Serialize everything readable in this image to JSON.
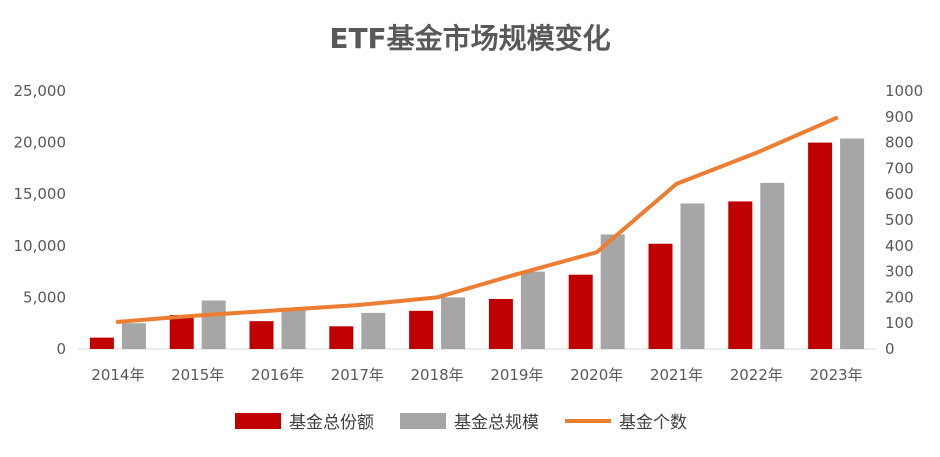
{
  "chart_data": {
    "type": "bar",
    "title": "ETF基金市场规模变化",
    "categories": [
      "2014年",
      "2015年",
      "2016年",
      "2017年",
      "2018年",
      "2019年",
      "2020年",
      "2021年",
      "2022年",
      "2023年"
    ],
    "series": [
      {
        "name": "基金总份额",
        "type": "bar",
        "axis": "left",
        "color": "#C00000",
        "values": [
          1100,
          3300,
          2700,
          2200,
          3700,
          4850,
          7200,
          10200,
          14300,
          20000
        ]
      },
      {
        "name": "基金总规模",
        "type": "bar",
        "axis": "left",
        "color": "#A6A6A6",
        "values": [
          2500,
          4700,
          3800,
          3500,
          5000,
          7500,
          11100,
          14100,
          16100,
          20400
        ]
      },
      {
        "name": "基金个数",
        "type": "line",
        "axis": "right",
        "color": "#ED7D31",
        "values": [
          105,
          130,
          150,
          170,
          200,
          290,
          375,
          640,
          760,
          895
        ]
      }
    ],
    "y_left": {
      "min": 0,
      "max": 25000,
      "step": 5000,
      "tick_labels": [
        "0",
        "5,000",
        "10,000",
        "15,000",
        "20,000",
        "25,000"
      ]
    },
    "y_right": {
      "min": 0,
      "max": 1000,
      "step": 100,
      "tick_labels": [
        "0",
        "100",
        "200",
        "300",
        "400",
        "500",
        "600",
        "700",
        "800",
        "900",
        "1000"
      ]
    },
    "legend_position": "bottom",
    "grid": false
  }
}
